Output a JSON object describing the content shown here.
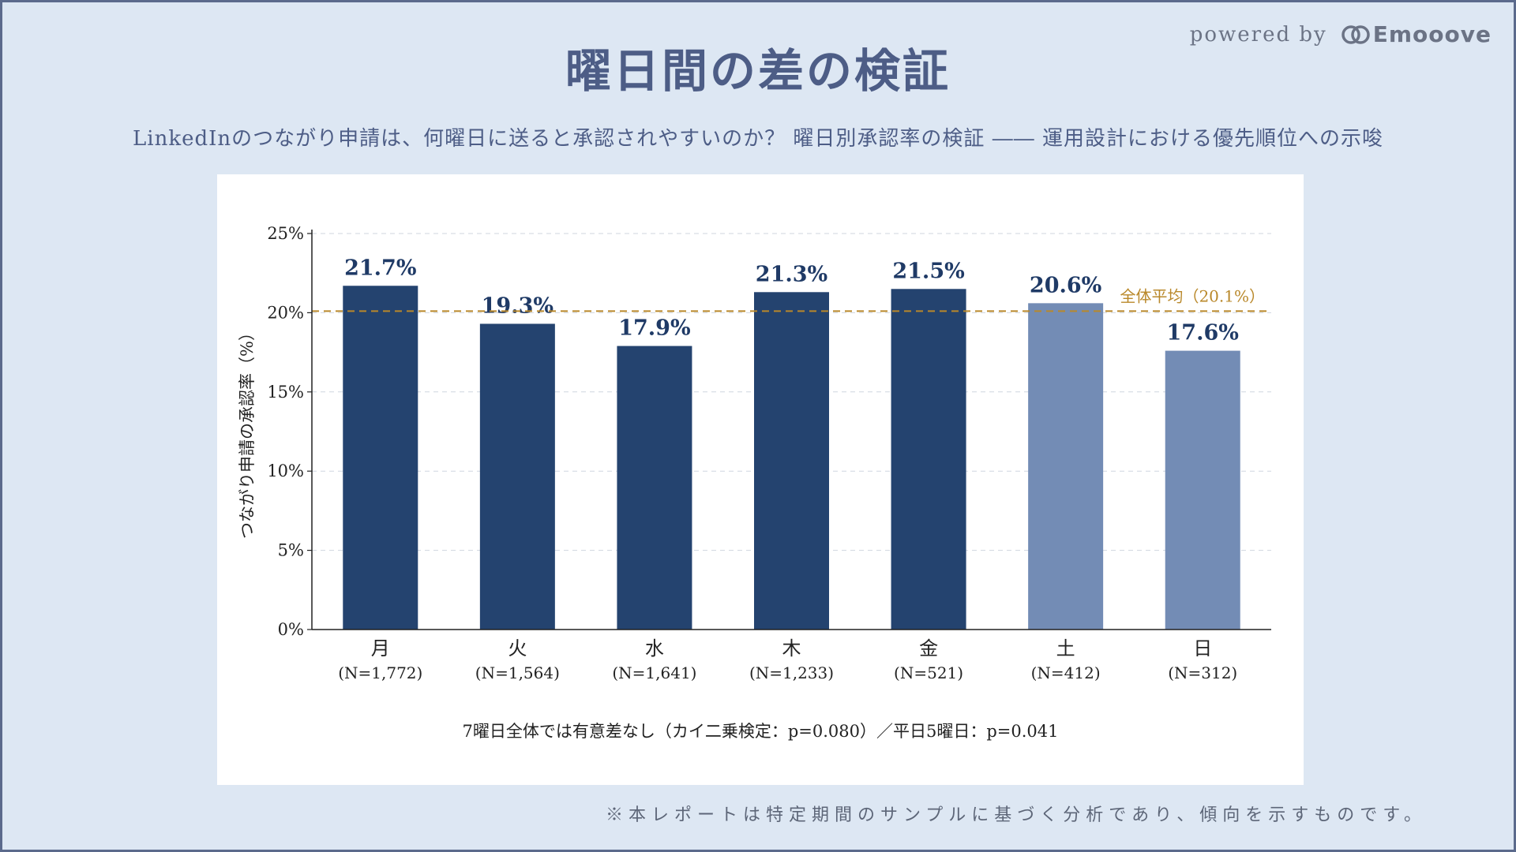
{
  "title": "曜日間の差の検証",
  "brand": {
    "prefix": "powered by",
    "name": "Emooove"
  },
  "subtitle": "LinkedInのつながり申請は、何曜日に送ると承認されやすいのか？ 曜日別承認率の検証 ―― 運用設計における優先順位への示唆",
  "note": "7曜日全体では有意差なし（カイ二乗検定：p=0.080）／平日5曜日：p=0.041",
  "footer": "※本レポートは特定期間のサンプルに基づく分析であり、傾向を示すものです。",
  "colors": {
    "weekday_bar": "#24436f",
    "weekend_bar": "#738cb5",
    "average_line": "#b9882a",
    "value_label": "#1f3a66"
  },
  "chart_data": {
    "type": "bar",
    "categories": [
      "月",
      "火",
      "水",
      "木",
      "金",
      "土",
      "日"
    ],
    "sample_labels": [
      "(N=1,772)",
      "(N=1,564)",
      "(N=1,641)",
      "(N=1,233)",
      "(N=521)",
      "(N=412)",
      "(N=312)"
    ],
    "values": [
      21.7,
      19.3,
      17.9,
      21.3,
      21.5,
      20.6,
      17.6
    ],
    "value_labels": [
      "21.7%",
      "19.3%",
      "17.9%",
      "21.3%",
      "21.5%",
      "20.6%",
      "17.6%"
    ],
    "group": [
      "weekday",
      "weekday",
      "weekday",
      "weekday",
      "weekday",
      "weekend",
      "weekend"
    ],
    "ylabel": "つながり申請の承認率（%）",
    "ylim": [
      0,
      25
    ],
    "yticks": [
      0,
      5,
      10,
      15,
      20,
      25
    ],
    "ytick_labels": [
      "0%",
      "5%",
      "10%",
      "15%",
      "20%",
      "25%"
    ],
    "reference_line": {
      "value": 20.1,
      "label": "全体平均（20.1%）"
    },
    "grid": "horizontal dashed"
  }
}
